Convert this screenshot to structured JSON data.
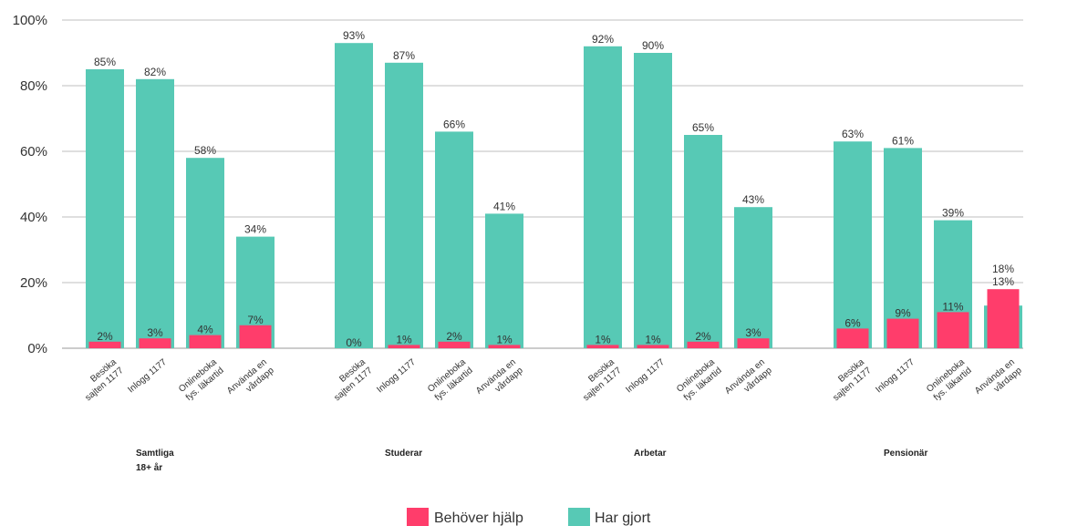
{
  "chart_data": {
    "type": "bar",
    "ylim": [
      0,
      100
    ],
    "yticks": [
      "0%",
      "20%",
      "40%",
      "60%",
      "80%",
      "100%"
    ],
    "grid": true,
    "legend_placement": "bottom",
    "groups": [
      {
        "label_lines": [
          "Samtliga",
          "18+ år"
        ],
        "categories": [
          {
            "lines": [
              "Besöka",
              "sajten 1177"
            ],
            "har_gjort": 85,
            "behover_hjalp": 2
          },
          {
            "lines": [
              "Inlogg 1177"
            ],
            "har_gjort": 82,
            "behover_hjalp": 3
          },
          {
            "lines": [
              "Onlineboka",
              "fys. läkartid"
            ],
            "har_gjort": 58,
            "behover_hjalp": 4
          },
          {
            "lines": [
              "Använda en",
              "vårdapp"
            ],
            "har_gjort": 34,
            "behover_hjalp": 7
          }
        ]
      },
      {
        "label_lines": [
          "Studerar"
        ],
        "categories": [
          {
            "lines": [
              "Besöka",
              "sajten 1177"
            ],
            "har_gjort": 93,
            "behover_hjalp": 0
          },
          {
            "lines": [
              "Inlogg 1177"
            ],
            "har_gjort": 87,
            "behover_hjalp": 1
          },
          {
            "lines": [
              "Onlineboka",
              "fys. läkartid"
            ],
            "har_gjort": 66,
            "behover_hjalp": 2
          },
          {
            "lines": [
              "Använda en",
              "vårdapp"
            ],
            "har_gjort": 41,
            "behover_hjalp": 1
          }
        ]
      },
      {
        "label_lines": [
          "Arbetar"
        ],
        "categories": [
          {
            "lines": [
              "Besöka",
              "sajten 1177"
            ],
            "har_gjort": 92,
            "behover_hjalp": 1
          },
          {
            "lines": [
              "Inlogg 1177"
            ],
            "har_gjort": 90,
            "behover_hjalp": 1
          },
          {
            "lines": [
              "Onlineboka",
              "fys. läkartid"
            ],
            "har_gjort": 65,
            "behover_hjalp": 2
          },
          {
            "lines": [
              "Använda en",
              "vårdapp"
            ],
            "har_gjort": 43,
            "behover_hjalp": 3
          }
        ]
      },
      {
        "label_lines": [
          "Pensionär"
        ],
        "categories": [
          {
            "lines": [
              "Besöka",
              "sajten 1177"
            ],
            "har_gjort": 63,
            "behover_hjalp": 6
          },
          {
            "lines": [
              "Inlogg 1177"
            ],
            "har_gjort": 61,
            "behover_hjalp": 9
          },
          {
            "lines": [
              "Onlineboka",
              "fys. läkartid"
            ],
            "har_gjort": 39,
            "behover_hjalp": 11
          },
          {
            "lines": [
              "Använda en",
              "vårdapp"
            ],
            "har_gjort": 13,
            "behover_hjalp": 18
          }
        ]
      }
    ],
    "series": [
      {
        "key": "behover_hjalp",
        "name": "Behöver hjälp",
        "color": "#ff3d6b"
      },
      {
        "key": "har_gjort",
        "name": "Har gjort",
        "color": "#57c9b5"
      }
    ]
  }
}
